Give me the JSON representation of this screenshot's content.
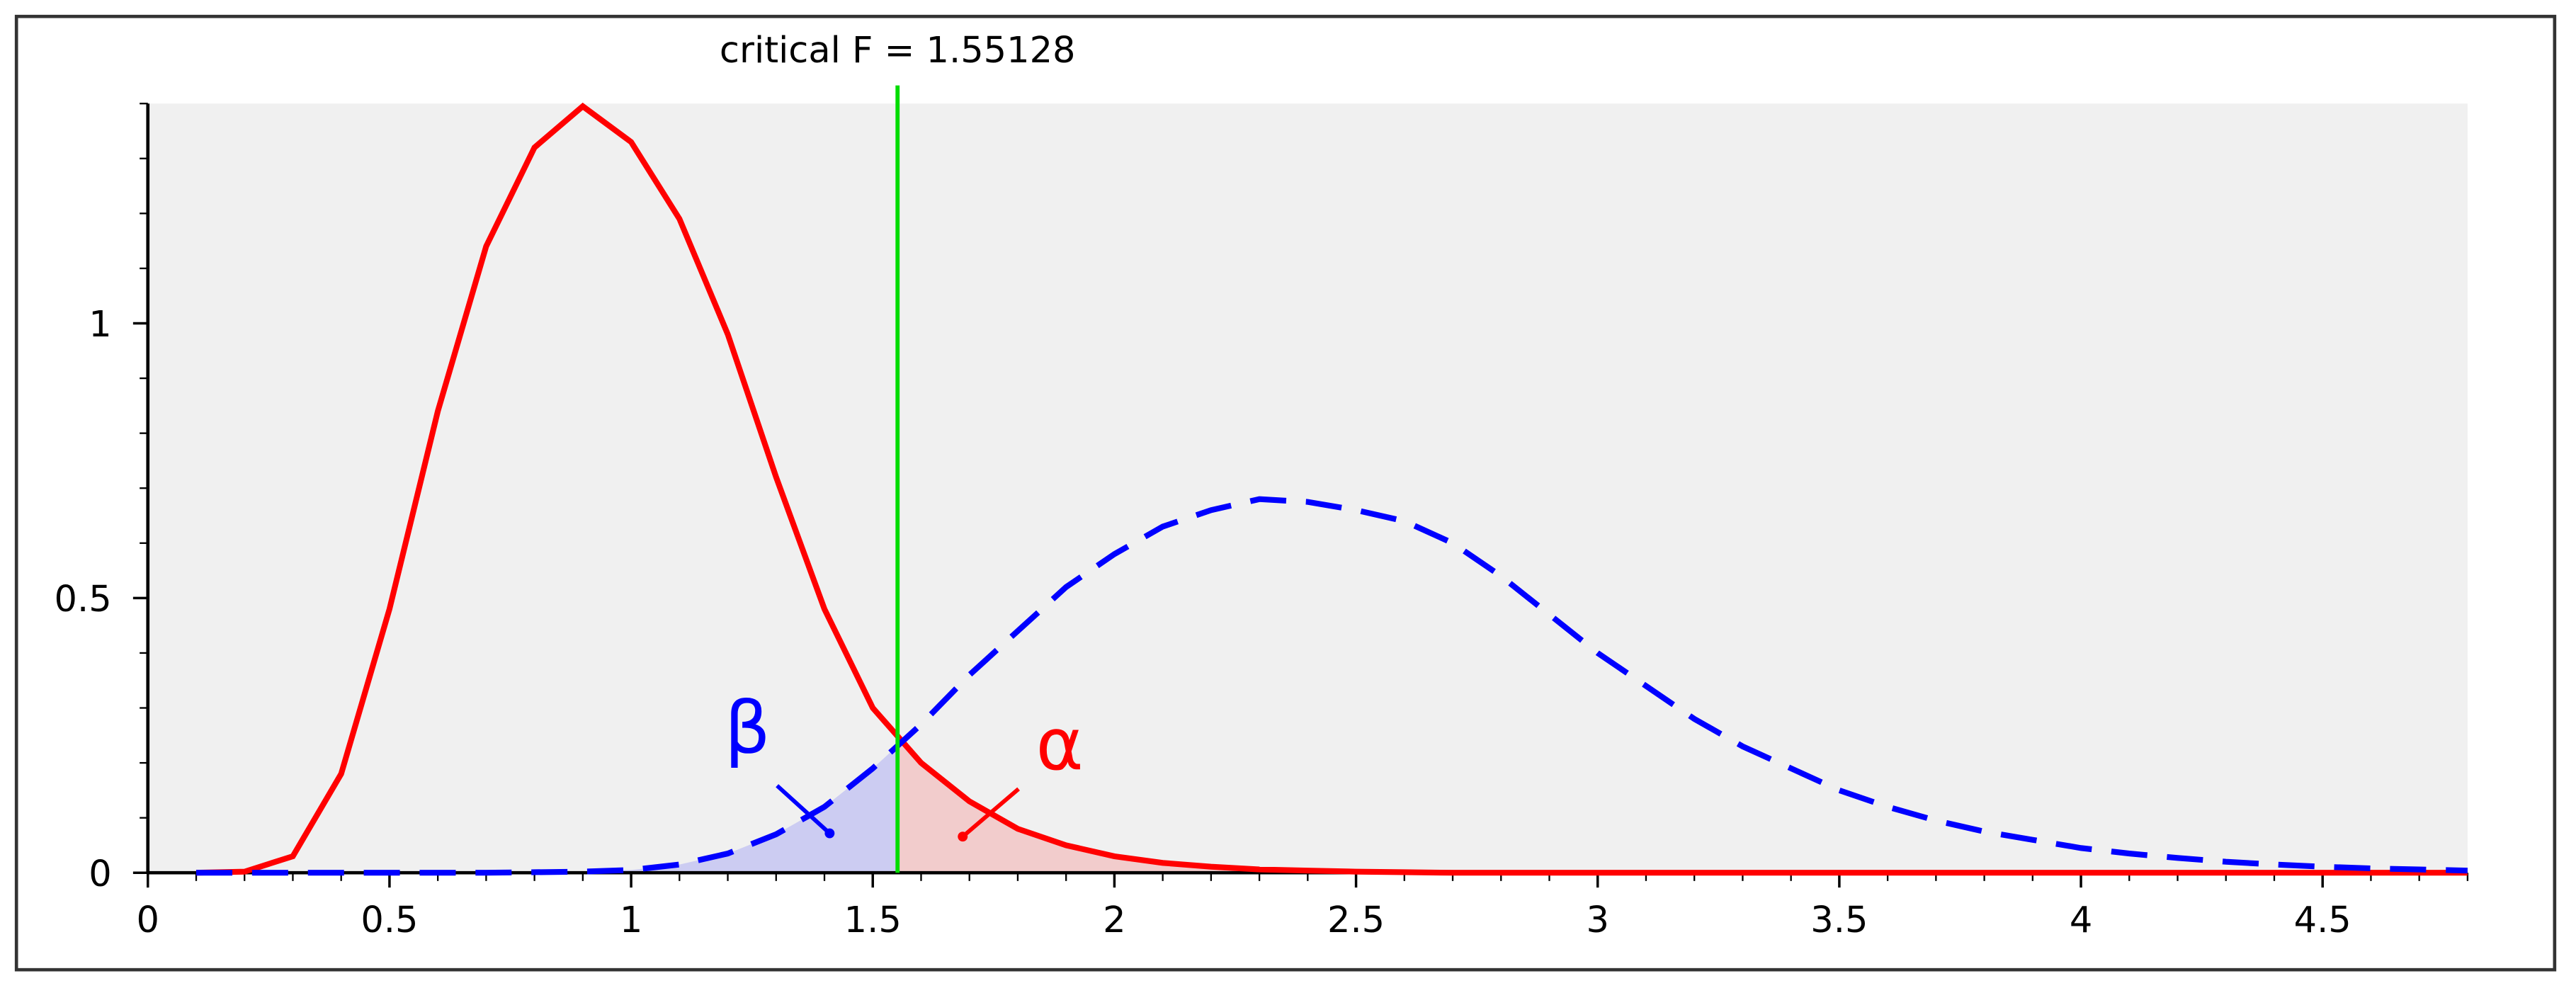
{
  "chart_data": {
    "type": "line",
    "title": "critical F = 1.55128",
    "critical_line": {
      "value": 1.55128,
      "label": "critical F = 1.55128",
      "color": "#00dd00"
    },
    "x": [
      0.1,
      0.2,
      0.3,
      0.4,
      0.5,
      0.6,
      0.7,
      0.8,
      0.9,
      1.0,
      1.1,
      1.2,
      1.3,
      1.4,
      1.5,
      1.6,
      1.7,
      1.8,
      1.9,
      2.0,
      2.1,
      2.2,
      2.3,
      2.4,
      2.5,
      2.6,
      2.7,
      2.8,
      2.9,
      3.0,
      3.1,
      3.2,
      3.3,
      3.4,
      3.5,
      3.6,
      3.7,
      3.8,
      3.9,
      4.0,
      4.1,
      4.2,
      4.3,
      4.4,
      4.5,
      4.6,
      4.7,
      4.8
    ],
    "series": [
      {
        "name": "α",
        "color": "#ff0000",
        "line_style": "solid",
        "values": [
          0,
          0.002,
          0.03,
          0.18,
          0.48,
          0.84,
          1.14,
          1.32,
          1.395,
          1.33,
          1.19,
          0.98,
          0.72,
          0.48,
          0.3,
          0.2,
          0.13,
          0.08,
          0.05,
          0.03,
          0.018,
          0.011,
          0.006,
          0.004,
          0.002,
          0.001,
          0,
          0,
          0,
          0,
          0,
          0,
          0,
          0,
          0,
          0,
          0,
          0,
          0,
          0,
          0,
          0,
          0,
          0,
          0,
          0,
          0,
          0
        ]
      },
      {
        "name": "β",
        "color": "#0000ff",
        "line_style": "dashed",
        "values": [
          0,
          0,
          0,
          0,
          0,
          0,
          0,
          0.001,
          0.002,
          0.005,
          0.015,
          0.035,
          0.07,
          0.12,
          0.19,
          0.27,
          0.36,
          0.44,
          0.52,
          0.58,
          0.63,
          0.66,
          0.68,
          0.675,
          0.66,
          0.64,
          0.6,
          0.54,
          0.47,
          0.4,
          0.34,
          0.28,
          0.23,
          0.19,
          0.15,
          0.12,
          0.095,
          0.075,
          0.06,
          0.045,
          0.035,
          0.027,
          0.02,
          0.015,
          0.011,
          0.008,
          0.006,
          0.004
        ]
      }
    ],
    "shade_below": [
      1,
      0
    ],
    "xlim": [
      0,
      4.8
    ],
    "ylim": [
      0,
      1.4
    ],
    "xticks": [
      0,
      0.5,
      1,
      1.5,
      2,
      2.5,
      3,
      3.5,
      4,
      4.5
    ],
    "yticks": [
      0,
      0.5,
      1
    ],
    "grid": false,
    "background": "#f0f0f0"
  }
}
